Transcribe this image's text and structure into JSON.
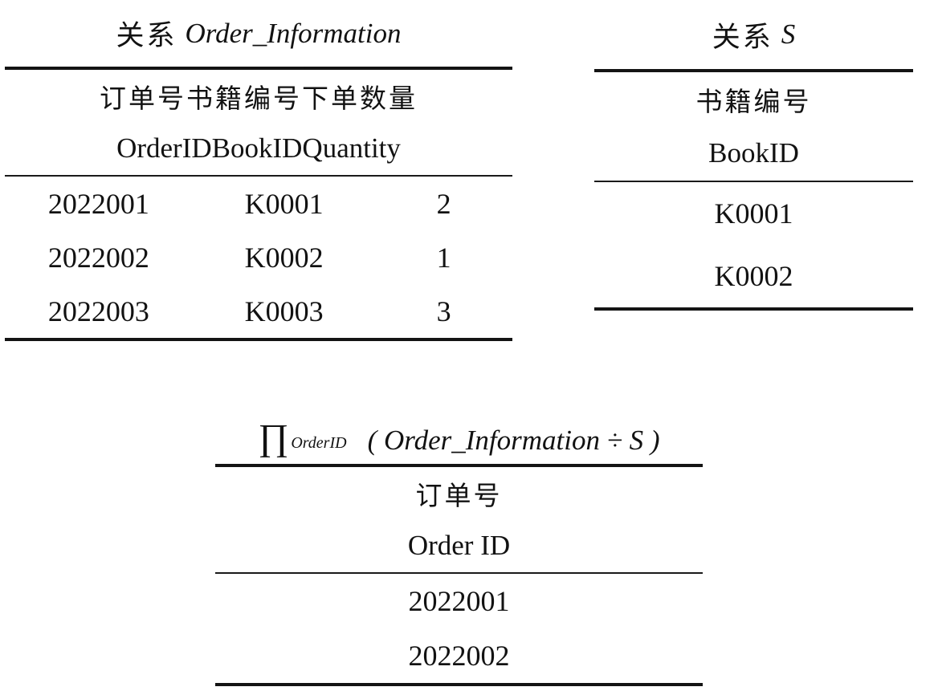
{
  "page": {
    "background": "#ffffff",
    "text_color": "#121212",
    "rule_color": "#141414"
  },
  "tables": {
    "order_information": {
      "title_zh": "关系",
      "title_latin": "Order_Information",
      "columns": [
        {
          "zh": "订单号",
          "en": "OrderID"
        },
        {
          "zh": "书籍编号",
          "en": "BookID"
        },
        {
          "zh": "下单数量",
          "en": "Quantity"
        }
      ],
      "rows": [
        [
          "2022001",
          "K0001",
          "2"
        ],
        [
          "2022002",
          "K0002",
          "1"
        ],
        [
          "2022003",
          "K0003",
          "3"
        ]
      ]
    },
    "s": {
      "title_zh": "关系",
      "title_latin": "S",
      "columns": [
        {
          "zh": "书籍编号",
          "en": "BookID"
        }
      ],
      "rows": [
        [
          "K0001"
        ],
        [
          "K0002"
        ]
      ]
    },
    "result": {
      "title_operator": "∏",
      "title_subscript": "OrderID",
      "title_expression": "( Order_Information ÷ S )",
      "columns": [
        {
          "zh": "订单号",
          "en": "Order ID"
        }
      ],
      "rows": [
        [
          "2022001"
        ],
        [
          "2022002"
        ]
      ]
    }
  }
}
